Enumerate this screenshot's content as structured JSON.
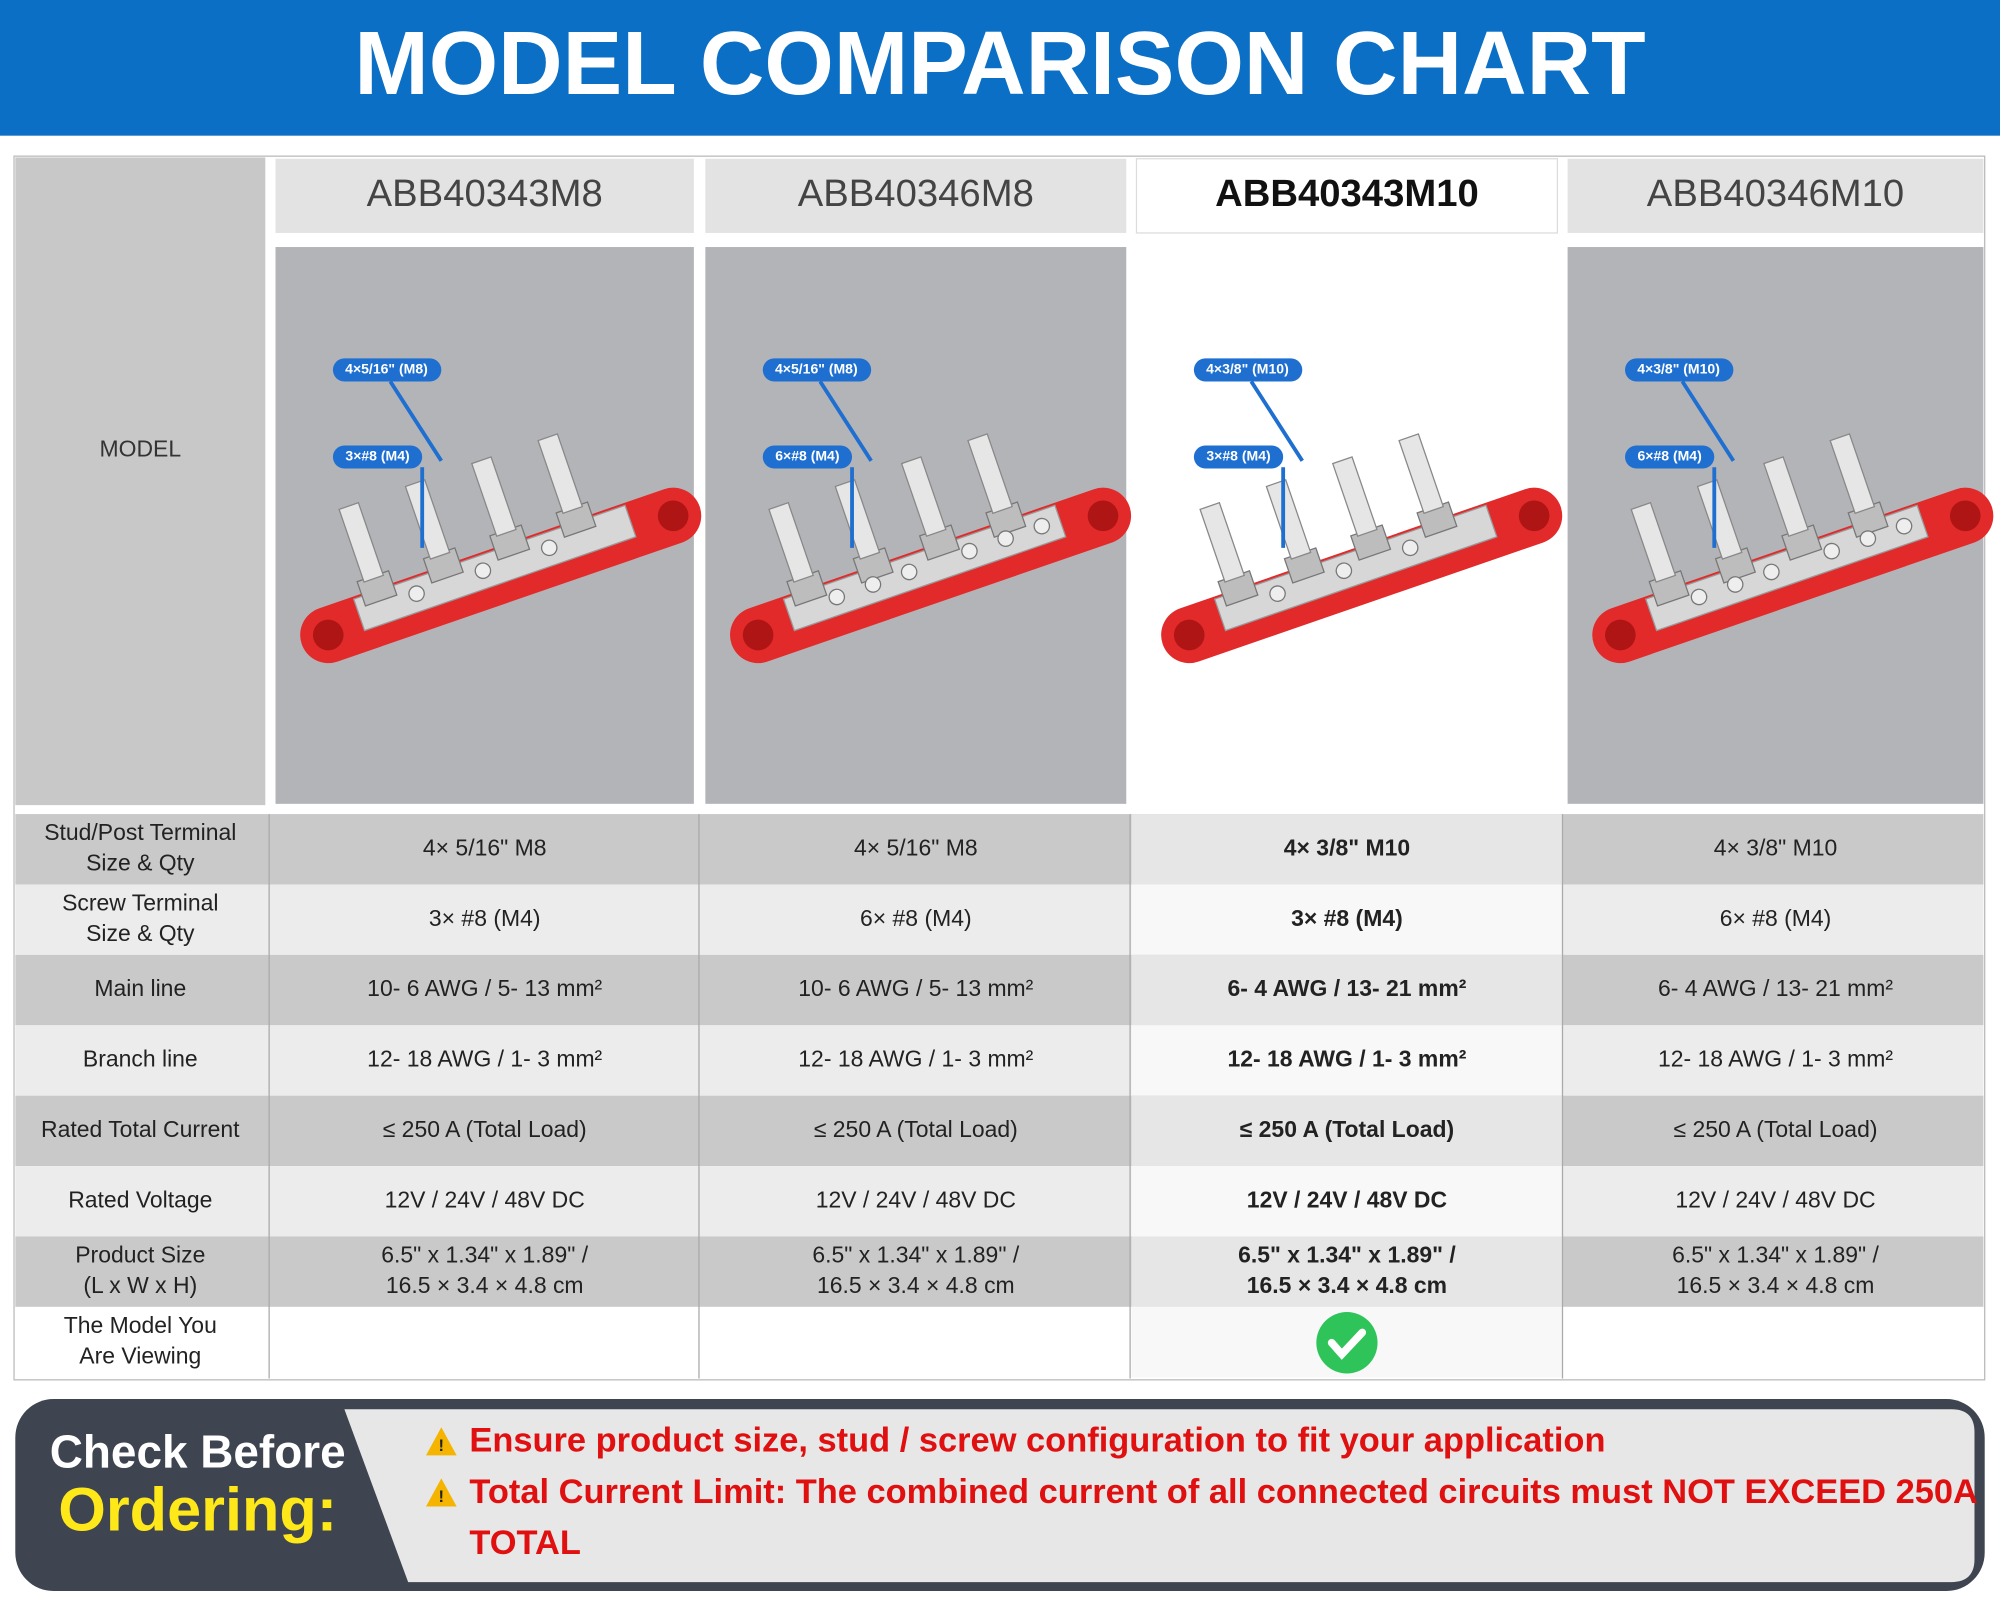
{
  "header": {
    "title": "MODEL COMPARISON CHART"
  },
  "table": {
    "corner": "MODEL",
    "highlight_column": 2,
    "models": [
      "ABB40343M8",
      "ABB40346M8",
      "ABB40343M10",
      "ABB40346M10"
    ],
    "images": [
      {
        "stud": "4×5/16\" (M8)",
        "screw": "3×#8 (M4)"
      },
      {
        "stud": "4×5/16\" (M8)",
        "screw": "6×#8 (M4)"
      },
      {
        "stud": "4×3/8\" (M10)",
        "screw": "3×#8 (M4)"
      },
      {
        "stud": "4×3/8\" (M10)",
        "screw": "6×#8 (M4)"
      }
    ],
    "rows": [
      {
        "label": [
          "Stud/Post Terminal",
          "Size & Qty"
        ],
        "cells": [
          [
            "4× 5/16\" M8"
          ],
          [
            "4× 5/16\" M8"
          ],
          [
            "4× 3/8\" M10"
          ],
          [
            "4× 3/8\" M10"
          ]
        ]
      },
      {
        "label": [
          "Screw Terminal",
          "Size & Qty"
        ],
        "cells": [
          [
            "3× #8 (M4)"
          ],
          [
            "6× #8 (M4)"
          ],
          [
            "3× #8 (M4)"
          ],
          [
            "6× #8 (M4)"
          ]
        ]
      },
      {
        "label": [
          "Main line"
        ],
        "cells": [
          [
            "10- 6 AWG / 5- 13 mm²"
          ],
          [
            "10- 6 AWG / 5- 13 mm²"
          ],
          [
            "6- 4 AWG / 13- 21 mm²"
          ],
          [
            "6- 4 AWG / 13- 21 mm²"
          ]
        ]
      },
      {
        "label": [
          "Branch line"
        ],
        "cells": [
          [
            "12- 18 AWG / 1- 3 mm²"
          ],
          [
            "12- 18 AWG / 1- 3 mm²"
          ],
          [
            "12- 18 AWG / 1- 3 mm²"
          ],
          [
            "12- 18 AWG / 1- 3 mm²"
          ]
        ]
      },
      {
        "label": [
          "Rated Total Current"
        ],
        "cells": [
          [
            "≤ 250 A (Total Load)"
          ],
          [
            "≤ 250 A (Total Load)"
          ],
          [
            "≤ 250 A (Total Load)"
          ],
          [
            "≤ 250 A (Total Load)"
          ]
        ]
      },
      {
        "label": [
          "Rated Voltage"
        ],
        "cells": [
          [
            "12V / 24V / 48V DC"
          ],
          [
            "12V / 24V / 48V DC"
          ],
          [
            "12V / 24V / 48V DC"
          ],
          [
            "12V / 24V / 48V DC"
          ]
        ]
      },
      {
        "label": [
          "Product Size",
          "(L x W x H)"
        ],
        "cells": [
          [
            "6.5\"  x 1.34\"  x 1.89\" /",
            "16.5 × 3.4 × 4.8 cm"
          ],
          [
            "6.5\"  x 1.34\"  x 1.89\" /",
            "16.5 × 3.4 × 4.8 cm"
          ],
          [
            "6.5\"  x 1.34\"  x 1.89\" /",
            "16.5 × 3.4 × 4.8 cm"
          ],
          [
            "6.5\"  x 1.34\"  x 1.89\" /",
            "16.5 × 3.4 × 4.8 cm"
          ]
        ]
      }
    ],
    "viewing_label": [
      "The Model You",
      "Are Viewing"
    ]
  },
  "notice": {
    "heading": [
      "Check Before",
      "Ordering:"
    ],
    "warnings": [
      [
        "Ensure product size, stud / screw configuration to fit your application"
      ],
      [
        "Total Current Limit: The combined current of all connected circuits must NOT EXCEED 250A",
        "TOTAL"
      ]
    ]
  }
}
